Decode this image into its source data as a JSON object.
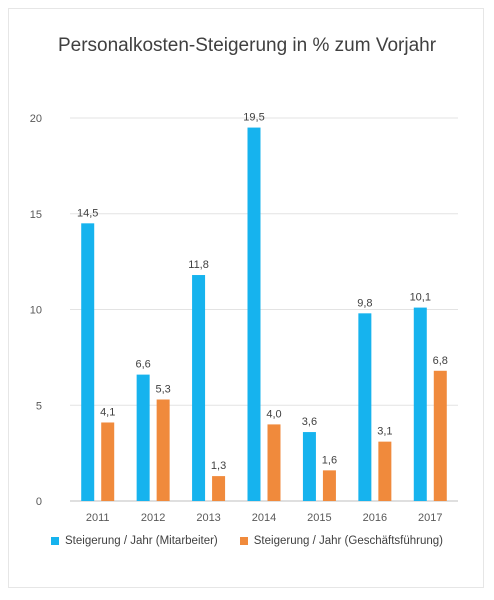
{
  "chart_data": {
    "type": "bar",
    "title": "Personalkosten-Steigerung in % zum Vorjahr",
    "categories": [
      "2011",
      "2012",
      "2013",
      "2014",
      "2015",
      "2016",
      "2017"
    ],
    "series": [
      {
        "name": "Steigerung / Jahr (Mitarbeiter)",
        "values": [
          14.5,
          6.6,
          11.8,
          19.5,
          3.6,
          9.8,
          10.1
        ],
        "labels": [
          "14,5",
          "6,6",
          "11,8",
          "19,5",
          "3,6",
          "9,8",
          "10,1"
        ],
        "color": "#16b3ee"
      },
      {
        "name": "Steigerung / Jahr (Geschäftsführung)",
        "values": [
          4.1,
          5.3,
          1.3,
          4.0,
          1.6,
          3.1,
          6.8
        ],
        "labels": [
          "4,1",
          "5,3",
          "1,3",
          "4,0",
          "1,6",
          "3,1",
          "6,8"
        ],
        "color": "#f08a3c"
      }
    ],
    "ylim": [
      0,
      20
    ],
    "yticks": [
      "0",
      "5",
      "10",
      "15",
      "20"
    ],
    "grid": true,
    "legend": "bottom"
  }
}
